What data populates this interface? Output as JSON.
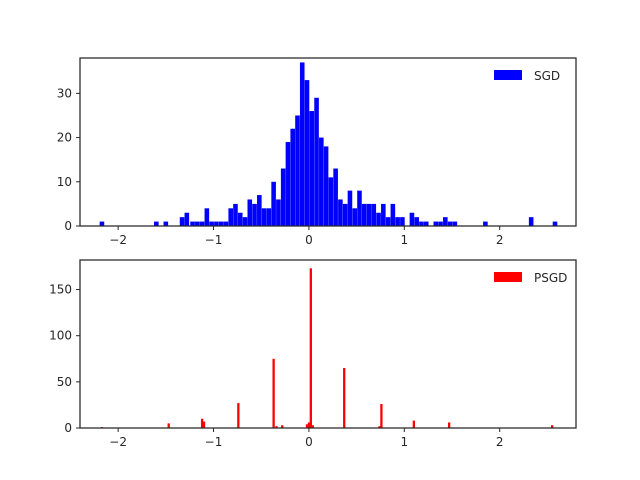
{
  "chart_data": [
    {
      "type": "histogram",
      "xlim": [
        -2.4,
        2.8
      ],
      "ylim": [
        0,
        38
      ],
      "x_ticks": [
        -2,
        -1,
        0,
        1,
        2
      ],
      "x_tick_labels": [
        "−2",
        "−1",
        "0",
        "1",
        "2"
      ],
      "y_ticks": [
        0,
        10,
        20,
        30
      ],
      "y_tick_labels": [
        "0",
        "10",
        "20",
        "30"
      ],
      "bin_width": 0.048,
      "legend": {
        "label": "SGD",
        "placement": "top-right"
      },
      "color": "#0000ff",
      "bins": [
        [
          -2.17,
          1
        ],
        [
          -1.6,
          1
        ],
        [
          -1.5,
          1
        ],
        [
          -1.33,
          2
        ],
        [
          -1.28,
          3
        ],
        [
          -1.22,
          1
        ],
        [
          -1.17,
          1
        ],
        [
          -1.12,
          1
        ],
        [
          -1.07,
          4
        ],
        [
          -1.02,
          1
        ],
        [
          -0.97,
          1
        ],
        [
          -0.92,
          1
        ],
        [
          -0.87,
          1
        ],
        [
          -0.82,
          4
        ],
        [
          -0.77,
          5
        ],
        [
          -0.72,
          3
        ],
        [
          -0.67,
          2
        ],
        [
          -0.62,
          6
        ],
        [
          -0.57,
          5
        ],
        [
          -0.52,
          7
        ],
        [
          -0.47,
          4
        ],
        [
          -0.42,
          4
        ],
        [
          -0.37,
          10
        ],
        [
          -0.32,
          6
        ],
        [
          -0.27,
          13
        ],
        [
          -0.22,
          19
        ],
        [
          -0.17,
          22
        ],
        [
          -0.12,
          25
        ],
        [
          -0.07,
          37
        ],
        [
          -0.02,
          33
        ],
        [
          0.03,
          26
        ],
        [
          0.08,
          29
        ],
        [
          0.13,
          20
        ],
        [
          0.18,
          18
        ],
        [
          0.23,
          11
        ],
        [
          0.28,
          13
        ],
        [
          0.33,
          6
        ],
        [
          0.38,
          5
        ],
        [
          0.43,
          8
        ],
        [
          0.48,
          4
        ],
        [
          0.53,
          8
        ],
        [
          0.58,
          5
        ],
        [
          0.63,
          5
        ],
        [
          0.68,
          5
        ],
        [
          0.73,
          3
        ],
        [
          0.78,
          5
        ],
        [
          0.83,
          2
        ],
        [
          0.88,
          5
        ],
        [
          0.93,
          2
        ],
        [
          0.98,
          2
        ],
        [
          1.08,
          3
        ],
        [
          1.13,
          2
        ],
        [
          1.18,
          1
        ],
        [
          1.23,
          1
        ],
        [
          1.33,
          1
        ],
        [
          1.38,
          1
        ],
        [
          1.43,
          2
        ],
        [
          1.48,
          1
        ],
        [
          1.53,
          1
        ],
        [
          1.85,
          1
        ],
        [
          2.33,
          2
        ],
        [
          2.58,
          1
        ]
      ]
    },
    {
      "type": "histogram",
      "xlim": [
        -2.4,
        2.8
      ],
      "ylim": [
        0,
        182
      ],
      "x_ticks": [
        -2,
        -1,
        0,
        1,
        2
      ],
      "x_tick_labels": [
        "−2",
        "−1",
        "0",
        "1",
        "2"
      ],
      "y_ticks": [
        0,
        50,
        100,
        150
      ],
      "y_tick_labels": [
        "0",
        "50",
        "100",
        "150"
      ],
      "bin_width": 0.024,
      "legend": {
        "label": "PSGD",
        "placement": "top-right"
      },
      "color": "#ff0000",
      "bins": [
        [
          -2.17,
          1
        ],
        [
          -1.47,
          5
        ],
        [
          -1.12,
          10
        ],
        [
          -1.1,
          7
        ],
        [
          -0.74,
          27
        ],
        [
          -0.37,
          75
        ],
        [
          -0.34,
          2
        ],
        [
          -0.28,
          3
        ],
        [
          -0.02,
          4
        ],
        [
          0.0,
          6
        ],
        [
          0.02,
          173
        ],
        [
          0.04,
          3
        ],
        [
          0.37,
          65
        ],
        [
          0.74,
          2
        ],
        [
          0.76,
          26
        ],
        [
          1.1,
          8
        ],
        [
          1.47,
          6
        ],
        [
          2.55,
          3
        ]
      ]
    }
  ]
}
